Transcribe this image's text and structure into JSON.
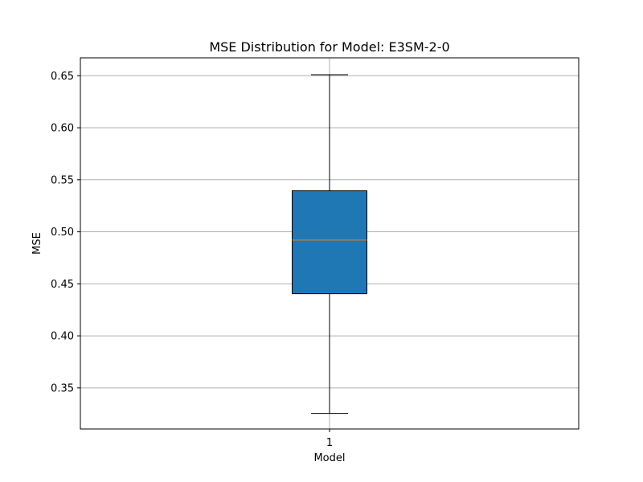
{
  "chart_data": {
    "type": "box",
    "title": "MSE Distribution for Model: E3SM-2-0",
    "xlabel": "Model",
    "ylabel": "MSE",
    "categories": [
      "1"
    ],
    "ylim": [
      0.3105,
      0.6672
    ],
    "yticks": [
      0.35,
      0.4,
      0.45,
      0.5,
      0.55,
      0.6,
      0.65
    ],
    "ytick_labels": [
      "0.35",
      "0.40",
      "0.45",
      "0.50",
      "0.55",
      "0.60",
      "0.65"
    ],
    "grid": true,
    "boxes": [
      {
        "category": "1",
        "whisker_low": 0.3255,
        "q1": 0.4405,
        "median": 0.492,
        "q3": 0.5395,
        "whisker_high": 0.651
      }
    ],
    "colors": {
      "box_fill": "#1f77b4",
      "median": "#ff7f0e",
      "grid": "#b0b0b0",
      "line": "#000000"
    }
  }
}
